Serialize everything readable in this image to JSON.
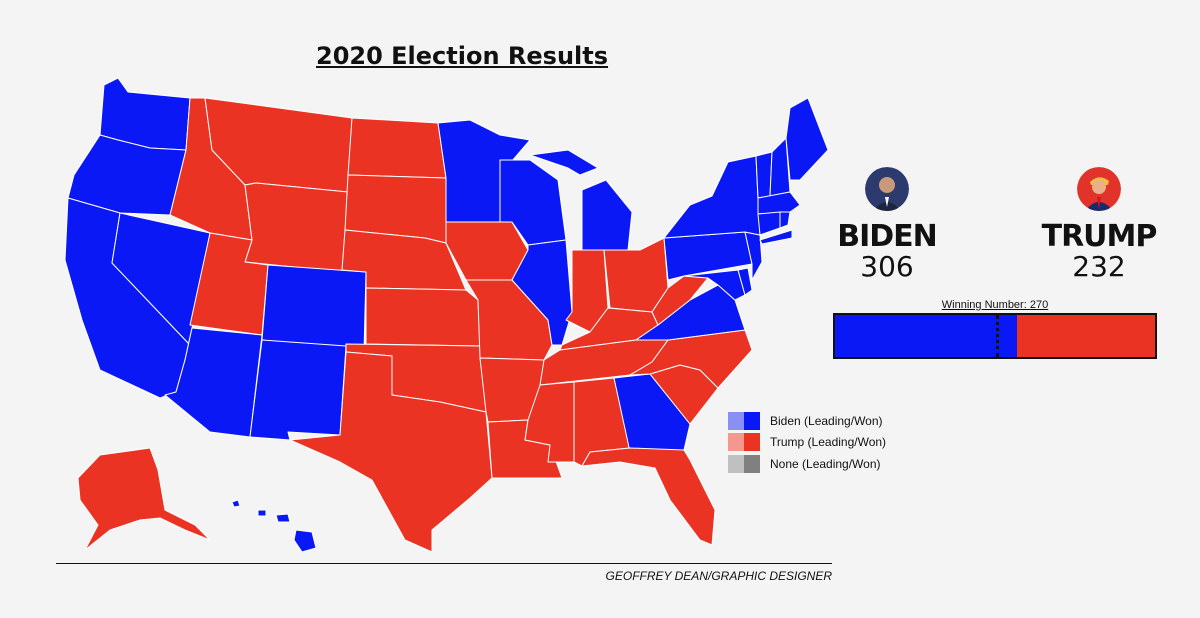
{
  "title": "2020 Election Results",
  "candidates": {
    "biden": {
      "name": "BIDEN",
      "votes": "306",
      "ev": 306,
      "avatar_bg": "#2c3a6e",
      "avatar_icon": "biden-portrait-icon"
    },
    "trump": {
      "name": "TRUMP",
      "votes": "232",
      "ev": 232,
      "avatar_bg": "#e2332a",
      "avatar_icon": "trump-portrait-icon"
    }
  },
  "winning_number_label": "Winning Number: 270",
  "winning_number": 270,
  "total_ev": 538,
  "colors": {
    "biden_won": "#0a18f5",
    "biden_leading": "#8a8ff6",
    "trump_won": "#ea3323",
    "trump_leading": "#f4978f",
    "none_won": "#808080",
    "none_leading": "#c0c0c0"
  },
  "legend": [
    {
      "label": "Biden (Leading/Won)",
      "light": "#8a8ff6",
      "dark": "#0a18f5"
    },
    {
      "label": "Trump (Leading/Won)",
      "light": "#f4978f",
      "dark": "#ea3323"
    },
    {
      "label": "None (Leading/Won)",
      "light": "#c0c0c0",
      "dark": "#808080"
    }
  ],
  "credit": "GEOFFREY DEAN/GRAPHIC DESIGNER",
  "states": {
    "WA": "biden",
    "OR": "biden",
    "CA": "biden",
    "NV": "biden",
    "AZ": "biden",
    "NM": "biden",
    "CO": "biden",
    "MN": "biden",
    "WI": "biden",
    "MI": "biden",
    "IL": "biden",
    "GA": "biden",
    "VA": "biden",
    "PA": "biden",
    "NY": "biden",
    "ME": "biden",
    "NH": "biden",
    "VT": "biden",
    "MA": "biden",
    "CT": "biden",
    "RI": "biden",
    "NJ": "biden",
    "DE": "biden",
    "MD": "biden",
    "HI": "biden",
    "ID": "trump",
    "MT": "trump",
    "WY": "trump",
    "UT": "trump",
    "ND": "trump",
    "SD": "trump",
    "NE": "trump",
    "KS": "trump",
    "OK": "trump",
    "TX": "trump",
    "IA": "trump",
    "MO": "trump",
    "AR": "trump",
    "LA": "trump",
    "MS": "trump",
    "AL": "trump",
    "TN": "trump",
    "KY": "trump",
    "IN": "trump",
    "OH": "trump",
    "WV": "trump",
    "NC": "trump",
    "SC": "trump",
    "FL": "trump",
    "AK": "trump"
  }
}
